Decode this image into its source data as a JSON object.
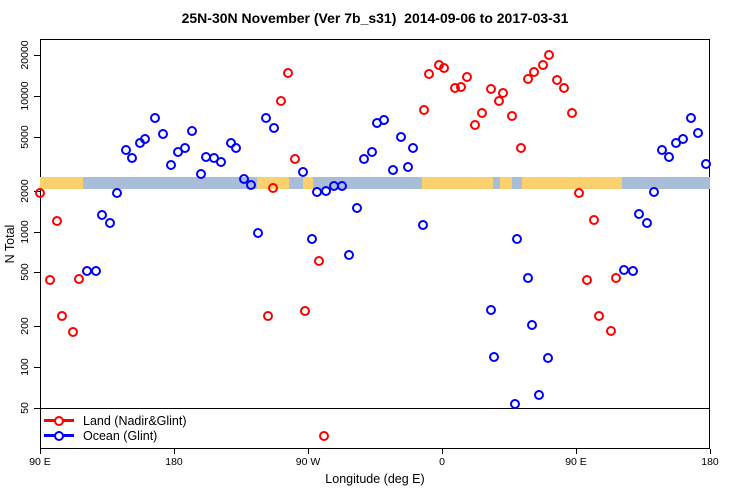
{
  "title": "25N-30N November (Ver 7b_s31)  2014-09-06 to 2017-03-31",
  "chart_data": {
    "type": "scatter",
    "xlabel": "Longitude (deg E)",
    "ylabel": "N Total",
    "x_axis": {
      "unit": "degrees east of 90E; axis spans 450 deg (wraps past 180 back through 0 to 180)",
      "ticks": [
        {
          "deg": 0,
          "label": "90 E"
        },
        {
          "deg": 90,
          "label": "180"
        },
        {
          "deg": 180,
          "label": "90 W"
        },
        {
          "deg": 270,
          "label": "0"
        },
        {
          "deg": 360,
          "label": "90 E"
        },
        {
          "deg": 450,
          "label": "180"
        }
      ]
    },
    "y_axis": {
      "scale": "log10",
      "ticks": [
        50,
        100,
        200,
        500,
        1000,
        2000,
        5000,
        10000,
        20000
      ],
      "range_visible": [
        30,
        22000
      ]
    },
    "reference_line_n": 50,
    "land_ocean_strip": {
      "description": "decorative land/ocean map strip drawn across the plot near N=2100",
      "colors": {
        "land": "#fbd170",
        "ocean": "#a9bdd8"
      },
      "segments": [
        {
          "from_deg": 0,
          "to_deg": 28.9,
          "type": "land"
        },
        {
          "from_deg": 28.9,
          "to_deg": 145.8,
          "type": "ocean"
        },
        {
          "from_deg": 145.8,
          "to_deg": 167.2,
          "type": "land"
        },
        {
          "from_deg": 167.2,
          "to_deg": 176.6,
          "type": "ocean"
        },
        {
          "from_deg": 176.6,
          "to_deg": 183.3,
          "type": "land"
        },
        {
          "from_deg": 183.3,
          "to_deg": 256.5,
          "type": "ocean"
        },
        {
          "from_deg": 256.5,
          "to_deg": 390.9,
          "type": "land"
        },
        {
          "from_deg": 390.9,
          "to_deg": 450,
          "type": "ocean"
        }
      ],
      "notches": [
        {
          "from_deg": 304,
          "to_deg": 309,
          "type": "ocean"
        },
        {
          "from_deg": 317,
          "to_deg": 324,
          "type": "ocean"
        }
      ]
    },
    "point_format": [
      "axis_deg",
      "n_total"
    ],
    "series": [
      {
        "name": "Land (Nadir&Glint)",
        "color": "#ff0000",
        "points": [
          [
            0,
            1920
          ],
          [
            11.4,
            1200
          ],
          [
            6.9,
            439
          ],
          [
            26,
            444
          ],
          [
            14.8,
            238
          ],
          [
            22.2,
            181
          ],
          [
            166.8,
            14800
          ],
          [
            161.9,
            9160
          ],
          [
            171.3,
            3400
          ],
          [
            156.7,
            2100
          ],
          [
            153.1,
            238
          ],
          [
            178,
            260
          ],
          [
            187.6,
            606
          ],
          [
            190.9,
            31
          ],
          [
            261.5,
            14400
          ],
          [
            268,
            16900
          ],
          [
            271.5,
            16100
          ],
          [
            278.7,
            11400
          ],
          [
            282.6,
            11700
          ],
          [
            286.6,
            13700
          ],
          [
            302.6,
            11200
          ],
          [
            257.9,
            7860
          ],
          [
            297.1,
            7460
          ],
          [
            292.2,
            6100
          ],
          [
            308.3,
            9230
          ],
          [
            311,
            10500
          ],
          [
            316.8,
            7130
          ],
          [
            322.9,
            4140
          ],
          [
            328,
            13200
          ],
          [
            332,
            15100
          ],
          [
            338,
            16900
          ],
          [
            341.9,
            20000
          ],
          [
            347,
            13100
          ],
          [
            352,
            11400
          ],
          [
            357.5,
            7460
          ],
          [
            362,
            1910
          ],
          [
            372.1,
            1210
          ],
          [
            367.6,
            439
          ],
          [
            386.7,
            452
          ],
          [
            375.5,
            238
          ],
          [
            383.3,
            186
          ]
        ]
      },
      {
        "name": "Ocean (Glint)",
        "color": "#0000ff",
        "points": [
          [
            41.8,
            1320
          ],
          [
            46.8,
            1160
          ],
          [
            51.9,
            1930
          ],
          [
            58,
            3990
          ],
          [
            62,
            3500
          ],
          [
            67.4,
            4470
          ],
          [
            70.7,
            4830
          ],
          [
            77,
            6840
          ],
          [
            82.6,
            5210
          ],
          [
            87.8,
            3080
          ],
          [
            92.7,
            3840
          ],
          [
            97.2,
            4110
          ],
          [
            102.3,
            5500
          ],
          [
            107.9,
            2650
          ],
          [
            111.7,
            3560
          ],
          [
            116.7,
            3470
          ],
          [
            121.4,
            3250
          ],
          [
            128.1,
            4470
          ],
          [
            131.8,
            4140
          ],
          [
            136.8,
            2440
          ],
          [
            141.5,
            2210
          ],
          [
            146.7,
            970
          ],
          [
            151.6,
            6840
          ],
          [
            157.2,
            5770
          ],
          [
            176.9,
            2740
          ],
          [
            182.5,
            880
          ],
          [
            186.2,
            1950
          ],
          [
            192.1,
            2000
          ],
          [
            197.5,
            2150
          ],
          [
            203,
            2180
          ],
          [
            207.5,
            672
          ],
          [
            212.7,
            1500
          ],
          [
            217.8,
            3420
          ],
          [
            223.2,
            3840
          ],
          [
            226.5,
            6290
          ],
          [
            231.2,
            6650
          ],
          [
            237.3,
            2840
          ],
          [
            242.3,
            4990
          ],
          [
            247,
            3010
          ],
          [
            250.7,
            4140
          ],
          [
            257.5,
            1120
          ],
          [
            302.9,
            265
          ],
          [
            305.2,
            119
          ],
          [
            319,
            54
          ],
          [
            320.4,
            875
          ],
          [
            327.6,
            452
          ],
          [
            330.7,
            204
          ],
          [
            335.4,
            62
          ],
          [
            341.4,
            117
          ],
          [
            392.2,
            520
          ],
          [
            398.1,
            515
          ],
          [
            402.5,
            1340
          ],
          [
            407.4,
            1160
          ],
          [
            412.7,
            1960
          ],
          [
            417.8,
            3980
          ],
          [
            422.5,
            3530
          ],
          [
            427.2,
            4520
          ],
          [
            431.9,
            4840
          ],
          [
            437.2,
            6900
          ],
          [
            442.1,
            5360
          ],
          [
            447.3,
            3160
          ],
          [
            31.8,
            515
          ],
          [
            37.8,
            512
          ]
        ]
      }
    ]
  }
}
